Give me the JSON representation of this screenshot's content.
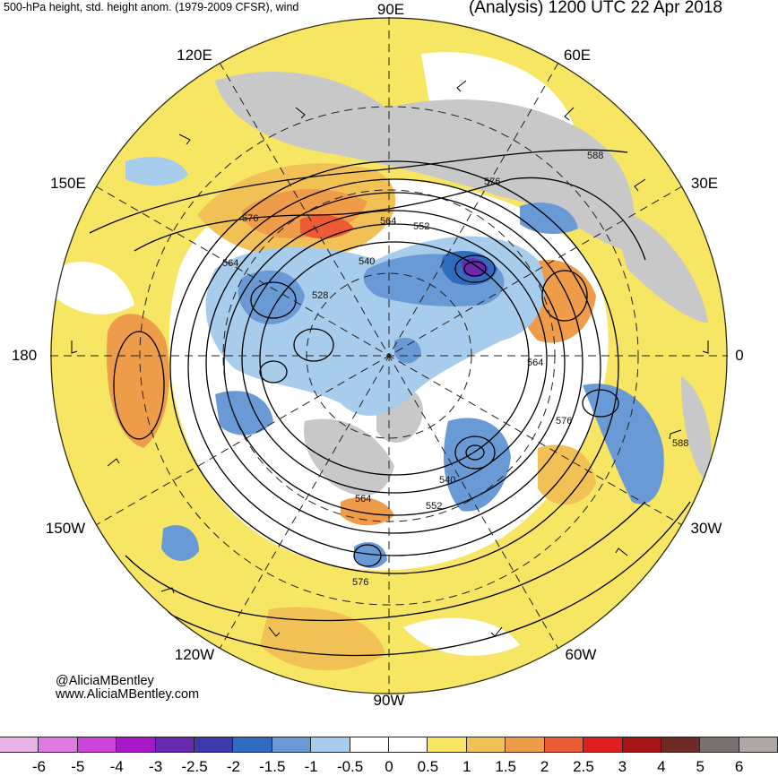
{
  "header": {
    "left": "500-hPa height, std. height anom. (1979-2009 CFSR), wind",
    "right": "(Analysis) 1200 UTC 22 Apr 2018"
  },
  "map": {
    "projection": "north polar stereographic",
    "longitude_labels": {
      "top": "90E",
      "upper_left": "120E",
      "upper_right": "60E",
      "mid_left_upper": "150E",
      "mid_right_upper": "30E",
      "left": "180",
      "right": "0",
      "mid_left_lower": "150W",
      "mid_right_lower": "30W",
      "lower_left": "120W",
      "lower_right": "60W",
      "bottom": "90W"
    },
    "contour_labels": [
      "588",
      "576",
      "576",
      "552",
      "564",
      "540",
      "564",
      "528",
      "564",
      "576",
      "588",
      "540",
      "552",
      "564",
      "576"
    ]
  },
  "credits": {
    "twitter": "@AliciaMBentley",
    "website": "www.AliciaMBentley.com"
  },
  "colorbar": {
    "labels": [
      "-6",
      "-5",
      "-4",
      "-3",
      "-2.5",
      "-2",
      "-1.5",
      "-1",
      "-0.5",
      "0",
      "0.5",
      "1",
      "1.5",
      "2",
      "2.5",
      "3",
      "4",
      "5",
      "6"
    ],
    "colors": [
      "#e8b4e8",
      "#e07ae0",
      "#cc44d8",
      "#a818c8",
      "#6a2ab0",
      "#3a3aa8",
      "#2f6cc0",
      "#6a9ad6",
      "#a8cceb",
      "#ffffff",
      "#ffffff",
      "#f7e564",
      "#f2c155",
      "#ef9c4a",
      "#ee5a33",
      "#e01e1e",
      "#a81515",
      "#6e2a26",
      "#7a7070",
      "#b0a6a6"
    ]
  }
}
